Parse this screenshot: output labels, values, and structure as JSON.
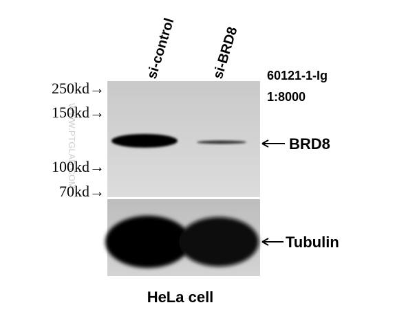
{
  "lanes": [
    "si-control",
    "si-BRD8"
  ],
  "markers": [
    "250kd→",
    "150kd→",
    "100kd→",
    "70kd→"
  ],
  "antibody": {
    "catalog": "60121-1-Ig",
    "dilution": "1:8000"
  },
  "bands": [
    "BRD8",
    "Tubulin"
  ],
  "watermark": "WWW.PTGLAB.COM",
  "sample": "HeLa cell"
}
